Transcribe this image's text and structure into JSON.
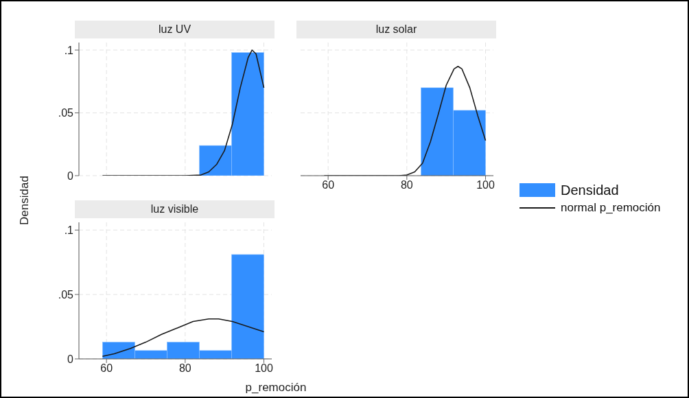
{
  "chart_data": [
    {
      "type": "histogram",
      "title": "luz UV",
      "ylabel": "Densidad",
      "bins": [
        59,
        67.2,
        75.4,
        83.6,
        91.8,
        100
      ],
      "xlim": [
        53,
        102
      ],
      "ylim": [
        0,
        0.106
      ],
      "xticks": [
        60,
        80,
        100
      ],
      "yticks": [
        {
          "value": 0,
          "label": "0"
        },
        {
          "value": 0.05,
          "label": ".05"
        },
        {
          "value": 0.1,
          "label": ".1"
        }
      ],
      "grid": true,
      "tick_labels": "y",
      "legend": "right",
      "series": [
        {
          "name": "Densidad",
          "color": "#338fff",
          "values": [
            0,
            0,
            0,
            0.024,
            0.098
          ]
        },
        {
          "name": "normal p_remoción",
          "type": "line",
          "color": "#1a1a1a",
          "x": [
            59,
            80,
            84,
            86,
            88,
            90,
            92,
            94,
            96,
            97,
            98,
            100
          ],
          "values": [
            0,
            0,
            0.0005,
            0.003,
            0.009,
            0.02,
            0.041,
            0.07,
            0.094,
            0.1,
            0.097,
            0.07
          ]
        }
      ]
    },
    {
      "type": "histogram",
      "title": "luz solar",
      "bins": [
        59,
        67.2,
        75.4,
        83.6,
        91.8,
        100
      ],
      "xlim": [
        53,
        102
      ],
      "ylim": [
        0,
        0.106
      ],
      "xticks": [
        60,
        80,
        100
      ],
      "yticks": [
        0,
        0.05,
        0.1
      ],
      "grid": true,
      "tick_labels": "x",
      "series": [
        {
          "color": "#338fff",
          "values": [
            0,
            0,
            0,
            0.07,
            0.052
          ]
        },
        {
          "type": "line",
          "color": "#1a1a1a",
          "x": [
            59,
            78,
            80,
            82,
            84,
            86,
            88,
            90,
            92,
            93,
            94,
            96,
            98,
            100
          ],
          "values": [
            0,
            0,
            0.0005,
            0.003,
            0.01,
            0.027,
            0.049,
            0.072,
            0.085,
            0.087,
            0.085,
            0.07,
            0.048,
            0.028
          ]
        }
      ]
    },
    {
      "type": "histogram",
      "title": "luz visible",
      "xlabel": "p_remoción",
      "bins": [
        59,
        67.2,
        75.4,
        83.6,
        91.8,
        100
      ],
      "xlim": [
        53,
        102
      ],
      "ylim": [
        0,
        0.106
      ],
      "xticks": [
        60,
        80,
        100
      ],
      "yticks": [
        {
          "value": 0,
          "label": "0"
        },
        {
          "value": 0.05,
          "label": ".05"
        },
        {
          "value": 0.1,
          "label": ".1"
        }
      ],
      "grid": true,
      "series": [
        {
          "color": "#338fff",
          "values": [
            0.013,
            0.0065,
            0.013,
            0.0065,
            0.081
          ]
        },
        {
          "type": "line",
          "color": "#1a1a1a",
          "x": [
            59,
            62,
            66,
            70,
            74,
            78,
            82,
            86,
            88.5,
            92,
            96,
            100
          ],
          "values": [
            0.002,
            0.004,
            0.008,
            0.013,
            0.019,
            0.024,
            0.029,
            0.031,
            0.031,
            0.029,
            0.025,
            0.021
          ]
        }
      ]
    }
  ]
}
